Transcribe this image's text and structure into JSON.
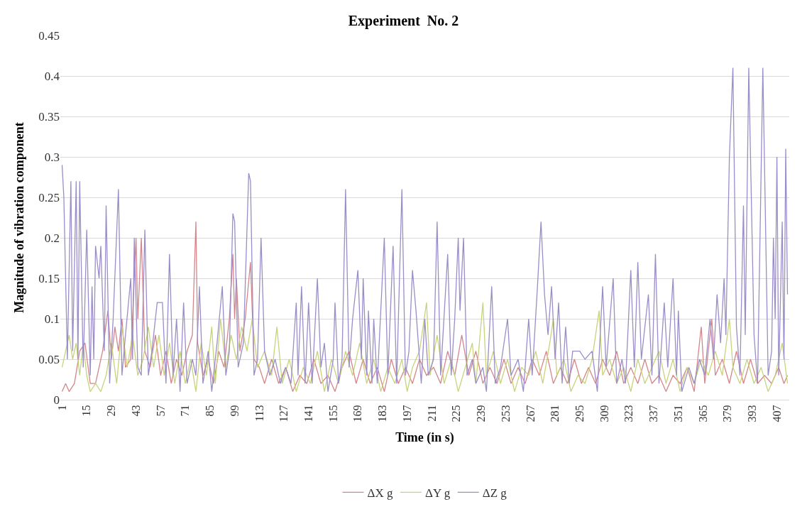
{
  "chart_data": {
    "type": "line",
    "title": "Experiment  No. 2",
    "xlabel": "Time (in s)",
    "ylabel": "Magnitude of vibration component",
    "xlim": [
      0,
      414
    ],
    "xticks": [
      1,
      15,
      29,
      43,
      57,
      71,
      85,
      99,
      113,
      127,
      141,
      155,
      169,
      183,
      197,
      211,
      225,
      239,
      253,
      267,
      281,
      295,
      309,
      323,
      337,
      351,
      365,
      379,
      393,
      407
    ],
    "ylim": [
      0,
      0.45
    ],
    "yticks": [
      0,
      0.05,
      0.1,
      0.15,
      0.2,
      0.25,
      0.3,
      0.35,
      0.4,
      0.45
    ],
    "grid": "y",
    "legend": "bottom",
    "marker": "none",
    "line_style": "solid",
    "series": [
      {
        "name": "ΔX g",
        "color": "#d4868b",
        "x": [
          1,
          3,
          5,
          8,
          11,
          14,
          17,
          20,
          24,
          27,
          29,
          31,
          33,
          35,
          37,
          40,
          43,
          44,
          46,
          48,
          51,
          54,
          57,
          60,
          63,
          66,
          69,
          72,
          75,
          77,
          78,
          81,
          84,
          87,
          90,
          93,
          96,
          98,
          99,
          100,
          102,
          105,
          108,
          110,
          113,
          116,
          120,
          124,
          128,
          132,
          136,
          140,
          144,
          148,
          152,
          156,
          160,
          164,
          168,
          172,
          176,
          180,
          184,
          188,
          192,
          196,
          200,
          204,
          208,
          212,
          216,
          220,
          224,
          228,
          232,
          236,
          240,
          244,
          248,
          252,
          256,
          260,
          264,
          268,
          272,
          276,
          280,
          284,
          288,
          292,
          296,
          300,
          304,
          308,
          312,
          316,
          320,
          324,
          328,
          332,
          336,
          340,
          344,
          348,
          352,
          356,
          360,
          364,
          366,
          370,
          372,
          376,
          380,
          384,
          388,
          392,
          396,
          400,
          404,
          408,
          411,
          413
        ],
        "values": [
          0.01,
          0.02,
          0.01,
          0.02,
          0.06,
          0.07,
          0.02,
          0.02,
          0.06,
          0.11,
          0.05,
          0.09,
          0.06,
          0.1,
          0.04,
          0.05,
          0.2,
          0.1,
          0.2,
          0.06,
          0.04,
          0.08,
          0.03,
          0.06,
          0.02,
          0.05,
          0.03,
          0.06,
          0.08,
          0.22,
          0.07,
          0.03,
          0.05,
          0.02,
          0.06,
          0.04,
          0.1,
          0.18,
          0.1,
          0.15,
          0.06,
          0.1,
          0.17,
          0.05,
          0.04,
          0.02,
          0.05,
          0.02,
          0.04,
          0.01,
          0.03,
          0.02,
          0.05,
          0.02,
          0.03,
          0.01,
          0.04,
          0.06,
          0.02,
          0.05,
          0.02,
          0.04,
          0.01,
          0.05,
          0.02,
          0.04,
          0.02,
          0.05,
          0.03,
          0.04,
          0.02,
          0.06,
          0.03,
          0.08,
          0.03,
          0.06,
          0.02,
          0.04,
          0.02,
          0.05,
          0.02,
          0.04,
          0.02,
          0.05,
          0.03,
          0.06,
          0.02,
          0.04,
          0.02,
          0.05,
          0.02,
          0.04,
          0.02,
          0.05,
          0.03,
          0.06,
          0.02,
          0.04,
          0.02,
          0.05,
          0.02,
          0.03,
          0.01,
          0.03,
          0.02,
          0.04,
          0.01,
          0.09,
          0.02,
          0.1,
          0.03,
          0.05,
          0.02,
          0.06,
          0.02,
          0.05,
          0.02,
          0.03,
          0.02,
          0.04,
          0.02,
          0.03
        ]
      },
      {
        "name": "ΔY g",
        "color": "#c8d37a",
        "x": [
          1,
          3,
          5,
          7,
          9,
          11,
          13,
          15,
          17,
          20,
          23,
          26,
          29,
          32,
          35,
          38,
          41,
          44,
          47,
          50,
          53,
          56,
          59,
          62,
          65,
          68,
          71,
          74,
          77,
          80,
          83,
          86,
          88,
          91,
          94,
          97,
          100,
          103,
          106,
          109,
          112,
          116,
          120,
          123,
          126,
          130,
          134,
          138,
          142,
          146,
          150,
          154,
          158,
          162,
          166,
          170,
          174,
          178,
          182,
          186,
          190,
          194,
          197,
          200,
          204,
          208,
          210,
          214,
          218,
          222,
          226,
          230,
          234,
          236,
          240,
          242,
          246,
          250,
          254,
          258,
          262,
          266,
          270,
          274,
          278,
          280,
          282,
          286,
          290,
          294,
          298,
          302,
          306,
          308,
          312,
          316,
          320,
          324,
          328,
          332,
          336,
          340,
          344,
          348,
          352,
          356,
          360,
          364,
          368,
          372,
          376,
          380,
          382,
          386,
          390,
          394,
          398,
          402,
          406,
          410,
          413
        ],
        "values": [
          0.04,
          0.06,
          0.08,
          0.05,
          0.07,
          0.03,
          0.07,
          0.03,
          0.01,
          0.02,
          0.01,
          0.03,
          0.07,
          0.02,
          0.09,
          0.04,
          0.08,
          0.03,
          0.05,
          0.09,
          0.04,
          0.08,
          0.03,
          0.07,
          0.02,
          0.06,
          0.02,
          0.05,
          0.01,
          0.07,
          0.03,
          0.09,
          0.02,
          0.1,
          0.04,
          0.08,
          0.05,
          0.09,
          0.06,
          0.1,
          0.04,
          0.06,
          0.03,
          0.09,
          0.02,
          0.05,
          0.01,
          0.04,
          0.02,
          0.06,
          0.01,
          0.05,
          0.02,
          0.06,
          0.03,
          0.07,
          0.02,
          0.05,
          0.01,
          0.04,
          0.02,
          0.05,
          0.01,
          0.04,
          0.06,
          0.12,
          0.03,
          0.08,
          0.02,
          0.05,
          0.01,
          0.04,
          0.07,
          0.02,
          0.12,
          0.03,
          0.06,
          0.02,
          0.05,
          0.01,
          0.04,
          0.03,
          0.06,
          0.02,
          0.07,
          0.1,
          0.03,
          0.05,
          0.01,
          0.03,
          0.02,
          0.05,
          0.11,
          0.03,
          0.05,
          0.02,
          0.04,
          0.01,
          0.05,
          0.02,
          0.04,
          0.06,
          0.02,
          0.05,
          0.01,
          0.04,
          0.02,
          0.05,
          0.03,
          0.06,
          0.03,
          0.1,
          0.04,
          0.02,
          0.05,
          0.02,
          0.04,
          0.01,
          0.03,
          0.07,
          0.02
        ]
      },
      {
        "name": "ΔZ g",
        "color": "#9b8dc8",
        "x": [
          1,
          2,
          4,
          6,
          7,
          9,
          10,
          11,
          13,
          15,
          17,
          18,
          19,
          20,
          22,
          23,
          25,
          26,
          28,
          30,
          33,
          35,
          37,
          40,
          41,
          42,
          44,
          46,
          48,
          50,
          52,
          55,
          57,
          58,
          60,
          62,
          64,
          66,
          68,
          70,
          72,
          75,
          77,
          79,
          81,
          84,
          86,
          89,
          92,
          94,
          96,
          98,
          99,
          101,
          104,
          107,
          108,
          110,
          112,
          114,
          116,
          119,
          122,
          125,
          128,
          131,
          134,
          135,
          137,
          139,
          141,
          143,
          146,
          148,
          150,
          152,
          155,
          156,
          158,
          160,
          162,
          164,
          166,
          168,
          169,
          171,
          172,
          174,
          175,
          177,
          178,
          180,
          184,
          186,
          189,
          191,
          194,
          196,
          198,
          200,
          202,
          205,
          207,
          209,
          212,
          214,
          216,
          220,
          222,
          224,
          226,
          227,
          229,
          231,
          234,
          236,
          240,
          242,
          245,
          247,
          250,
          254,
          256,
          260,
          263,
          266,
          268,
          271,
          273,
          275,
          277,
          279,
          281,
          283,
          285,
          287,
          289,
          291,
          295,
          298,
          302,
          305,
          308,
          310,
          314,
          316,
          319,
          321,
          324,
          326,
          328,
          330,
          334,
          336,
          338,
          340,
          343,
          345,
          348,
          350,
          351,
          353,
          357,
          360,
          363,
          366,
          369,
          371,
          373,
          375,
          377,
          378,
          380,
          382,
          384,
          386,
          388,
          389,
          391,
          394,
          396,
          399,
          402,
          404,
          405,
          406,
          407,
          408,
          410,
          411,
          412,
          413
        ],
        "values": [
          0.29,
          0.25,
          0.05,
          0.27,
          0.06,
          0.27,
          0.05,
          0.27,
          0.04,
          0.21,
          0.03,
          0.14,
          0.05,
          0.19,
          0.15,
          0.19,
          0.06,
          0.24,
          0.02,
          0.1,
          0.26,
          0.03,
          0.08,
          0.15,
          0.05,
          0.2,
          0.04,
          0.03,
          0.21,
          0.03,
          0.06,
          0.12,
          0.12,
          0.12,
          0.02,
          0.18,
          0.03,
          0.1,
          0.01,
          0.12,
          0.02,
          0.05,
          0.03,
          0.14,
          0.02,
          0.06,
          0.01,
          0.07,
          0.14,
          0.03,
          0.06,
          0.23,
          0.22,
          0.04,
          0.07,
          0.28,
          0.27,
          0.03,
          0.05,
          0.2,
          0.06,
          0.03,
          0.05,
          0.02,
          0.04,
          0.02,
          0.12,
          0.03,
          0.14,
          0.02,
          0.12,
          0.02,
          0.15,
          0.04,
          0.07,
          0.01,
          0.05,
          0.12,
          0.02,
          0.05,
          0.26,
          0.04,
          0.1,
          0.14,
          0.16,
          0.05,
          0.15,
          0.03,
          0.11,
          0.02,
          0.1,
          0.02,
          0.2,
          0.03,
          0.19,
          0.02,
          0.26,
          0.03,
          0.06,
          0.16,
          0.11,
          0.02,
          0.1,
          0.03,
          0.05,
          0.22,
          0.03,
          0.18,
          0.03,
          0.1,
          0.2,
          0.11,
          0.2,
          0.03,
          0.05,
          0.02,
          0.04,
          0.01,
          0.14,
          0.02,
          0.04,
          0.1,
          0.03,
          0.05,
          0.01,
          0.1,
          0.03,
          0.14,
          0.22,
          0.13,
          0.08,
          0.14,
          0.05,
          0.12,
          0.02,
          0.09,
          0.02,
          0.06,
          0.06,
          0.05,
          0.06,
          0.01,
          0.14,
          0.04,
          0.15,
          0.02,
          0.05,
          0.02,
          0.16,
          0.04,
          0.17,
          0.05,
          0.13,
          0.03,
          0.18,
          0.02,
          0.12,
          0.04,
          0.15,
          0.03,
          0.11,
          0.01,
          0.04,
          0.02,
          0.05,
          0.03,
          0.1,
          0.05,
          0.13,
          0.07,
          0.15,
          0.08,
          0.3,
          0.41,
          0.09,
          0.03,
          0.24,
          0.08,
          0.41,
          0.08,
          0.02,
          0.41,
          0.03,
          0.06,
          0.2,
          0.1,
          0.3,
          0.03,
          0.22,
          0.05,
          0.31,
          0.13
        ]
      }
    ]
  }
}
